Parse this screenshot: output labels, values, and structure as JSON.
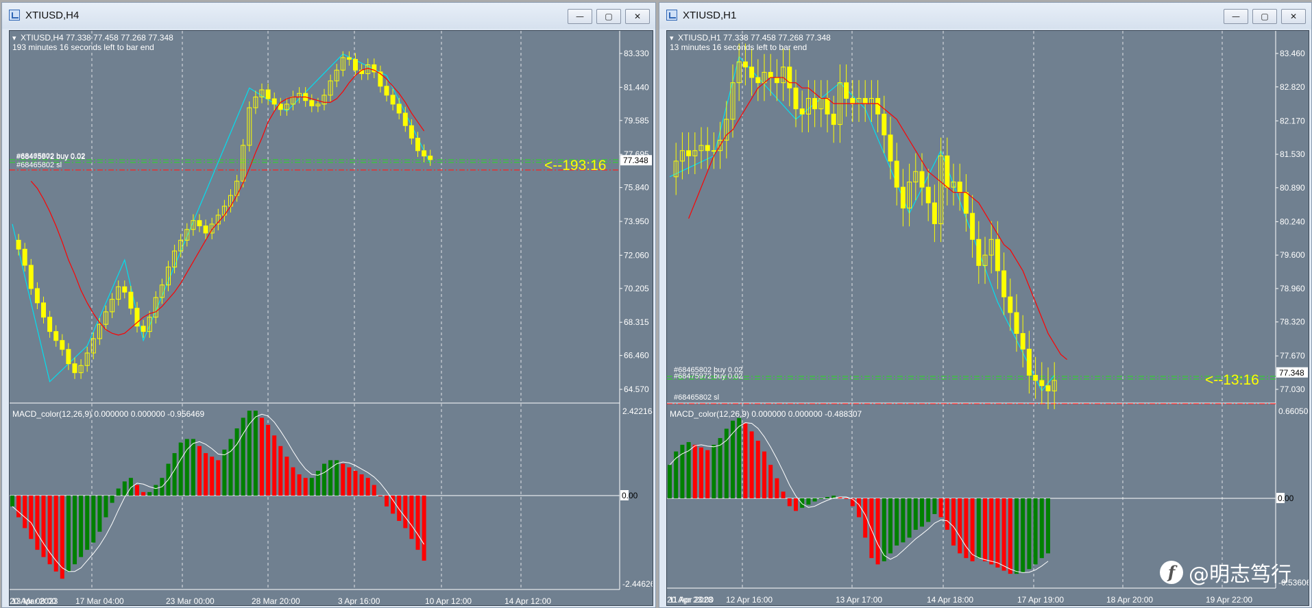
{
  "windows": [
    {
      "title": "XTIUSD,H4",
      "info_line1": "XTIUSD,H4  77.338 77.458 77.268 77.348",
      "info_line2": "193 minutes 16 seconds left to bar end",
      "price_ticks": [
        "83.330",
        "81.440",
        "79.585",
        "77.695",
        "75.840",
        "73.950",
        "72.060",
        "70.205",
        "68.315",
        "66.460",
        "64.570"
      ],
      "current_price": "77.348",
      "countdown": "<--193:16",
      "order_labels": [
        "#68465802 buy 0.02",
        "#68475972 buy 0.02",
        "#68465802 sl"
      ],
      "macd_label": "MACD_color(12,26,9) 0.000000 0.000000 -0.956469",
      "macd_ticks": [
        "2.422164",
        "0.00",
        "-2.446260"
      ],
      "time_ticks": [
        "13 Mar 2023",
        "17 Mar 04:00",
        "23 Mar 00:00",
        "28 Mar 20:00",
        "3 Apr 16:00",
        "10 Apr 12:00",
        "14 Apr 12:00",
        "20 Apr 08:00"
      ],
      "price_path": [
        72.9,
        72.4,
        71.5,
        70.2,
        69.4,
        68.6,
        67.8,
        67.3,
        66.8,
        66.0,
        65.5,
        65.9,
        66.6,
        67.4,
        68.2,
        68.9,
        69.6,
        70.3,
        70.0,
        69.1,
        68.1,
        67.8,
        68.6,
        69.7,
        70.4,
        71.4,
        72.3,
        72.9,
        73.5,
        74.0,
        73.7,
        73.3,
        73.8,
        74.3,
        74.8,
        75.4,
        76.2,
        78.2,
        80.3,
        80.9,
        81.3,
        80.8,
        80.5,
        80.2,
        80.5,
        80.9,
        81.1,
        80.7,
        80.4,
        80.5,
        81.0,
        81.8,
        82.4,
        83.1,
        83.0,
        82.4,
        82.2,
        82.7,
        82.3,
        81.5,
        81.0,
        80.5,
        80.0,
        79.3,
        78.6,
        77.9,
        77.6,
        77.4
      ],
      "ma_path": [
        76.2,
        75.8,
        75.2,
        74.5,
        73.7,
        72.8,
        71.8,
        71.0,
        70.1,
        69.4,
        68.8,
        68.3,
        67.9,
        67.7,
        67.6,
        67.7,
        68.0,
        68.3,
        68.6,
        68.8,
        68.9,
        69.2,
        69.6,
        70.0,
        70.5,
        71.1,
        71.7,
        72.3,
        72.9,
        73.5,
        73.9,
        74.3,
        74.8,
        75.4,
        76.1,
        76.9,
        77.8,
        78.6,
        79.5,
        80.1,
        80.6,
        80.8,
        80.9,
        80.9,
        80.9,
        80.8,
        80.7,
        80.6,
        80.6,
        80.8,
        81.2,
        81.7,
        82.1,
        82.4,
        82.5,
        82.4,
        82.2,
        81.9,
        81.5,
        81.1,
        80.6,
        80.0,
        79.5,
        79.0
      ],
      "zigzag": [
        [
          0,
          73.8
        ],
        [
          6,
          65.0
        ],
        [
          12,
          67.0
        ],
        [
          18,
          71.8
        ],
        [
          21,
          67.3
        ],
        [
          38,
          81.4
        ],
        [
          44,
          80.1
        ],
        [
          53,
          83.3
        ],
        [
          60,
          82.1
        ],
        [
          67,
          77.2
        ]
      ],
      "macd_values": [
        -0.3,
        -0.6,
        -0.9,
        -1.2,
        -1.5,
        -1.7,
        -1.9,
        -2.1,
        -2.3,
        -2.1,
        -1.9,
        -1.7,
        -1.5,
        -1.3,
        -1.0,
        -0.6,
        -0.2,
        0.2,
        0.4,
        0.5,
        0.3,
        0.1,
        0.1,
        0.3,
        0.5,
        0.9,
        1.2,
        1.5,
        1.6,
        1.6,
        1.4,
        1.2,
        1.1,
        1.0,
        1.3,
        1.6,
        1.9,
        2.2,
        2.4,
        2.4,
        2.2,
        2.0,
        1.7,
        1.4,
        1.1,
        0.8,
        0.6,
        0.5,
        0.5,
        0.7,
        0.9,
        1.0,
        1.0,
        0.9,
        0.8,
        0.7,
        0.6,
        0.5,
        0.3,
        0.0,
        -0.3,
        -0.5,
        -0.7,
        -0.9,
        -1.2,
        -1.5,
        -1.8
      ],
      "colors": {
        "bull": "#008000",
        "bear": "#ff0000",
        "candle": "#ffff00",
        "ma": "#ff0000",
        "zigzag": "#00e0f0",
        "countdown": "#ffff00"
      }
    },
    {
      "title": "XTIUSD,H1",
      "info_line1": "XTIUSD,H1  77.338 77.458 77.268 77.348",
      "info_line2": "13 minutes 16 seconds left to bar end",
      "price_ticks": [
        "83.460",
        "82.820",
        "82.170",
        "81.530",
        "80.890",
        "80.240",
        "79.600",
        "78.960",
        "78.320",
        "77.670",
        "77.030"
      ],
      "current_price": "77.348",
      "countdown": "<--13:16",
      "order_labels": [
        "#68465802 buy 0.02",
        "#68475972 buy 0.02",
        "#68465802 sl"
      ],
      "macd_label": "MACD_color(12,26,9) 0.000000 0.000000 -0.488307",
      "macd_ticks": [
        "0.660506",
        "0.00",
        "-0.536067"
      ],
      "time_ticks": [
        "11 Apr 2023",
        "12 Apr 16:00",
        "13 Apr 17:00",
        "14 Apr 18:00",
        "17 Apr 19:00",
        "18 Apr 20:00",
        "19 Apr 22:00",
        "20 Apr 23:00"
      ],
      "price_path": [
        81.1,
        81.4,
        81.6,
        81.5,
        81.6,
        81.7,
        81.6,
        81.6,
        81.8,
        82.2,
        82.9,
        83.3,
        83.2,
        83.0,
        82.9,
        83.1,
        83.0,
        82.9,
        83.2,
        82.8,
        82.4,
        82.3,
        82.6,
        82.4,
        82.6,
        82.3,
        82.1,
        82.9,
        82.6,
        82.5,
        82.6,
        82.5,
        82.6,
        82.3,
        81.9,
        81.4,
        80.9,
        80.5,
        81.0,
        81.2,
        80.9,
        80.6,
        80.2,
        81.5,
        80.9,
        81.0,
        80.8,
        80.4,
        79.9,
        79.4,
        79.6,
        79.9,
        79.3,
        78.8,
        78.5,
        78.1,
        77.8,
        77.3,
        77.2,
        77.1,
        77.0,
        77.2
      ],
      "ma_path": [
        80.3,
        80.6,
        80.9,
        81.2,
        81.5,
        81.7,
        81.9,
        82.0,
        82.2,
        82.4,
        82.6,
        82.8,
        82.9,
        83.0,
        83.0,
        83.0,
        82.9,
        82.9,
        82.8,
        82.8,
        82.7,
        82.6,
        82.6,
        82.5,
        82.5,
        82.5,
        82.5,
        82.5,
        82.5,
        82.5,
        82.5,
        82.4,
        82.3,
        82.2,
        82.0,
        81.8,
        81.6,
        81.4,
        81.2,
        81.1,
        81.0,
        80.9,
        80.8,
        80.8,
        80.8,
        80.7,
        80.6,
        80.4,
        80.2,
        80.0,
        79.8,
        79.7,
        79.5,
        79.3,
        79.0,
        78.7,
        78.4,
        78.1,
        77.9,
        77.7,
        77.6
      ],
      "zigzag": [
        [
          0,
          81.1
        ],
        [
          7,
          81.5
        ],
        [
          11,
          83.4
        ],
        [
          20,
          82.2
        ],
        [
          27,
          82.9
        ],
        [
          31,
          82.4
        ],
        [
          38,
          80.4
        ],
        [
          43,
          81.6
        ],
        [
          52,
          78.7
        ],
        [
          59,
          77.0
        ],
        [
          61,
          77.3
        ]
      ],
      "macd_values": [
        0.25,
        0.35,
        0.4,
        0.42,
        0.4,
        0.38,
        0.36,
        0.4,
        0.45,
        0.52,
        0.58,
        0.6,
        0.56,
        0.5,
        0.43,
        0.35,
        0.25,
        0.15,
        0.05,
        -0.05,
        -0.08,
        -0.06,
        -0.04,
        -0.02,
        0.0,
        0.01,
        0.02,
        0.01,
        0.0,
        -0.05,
        -0.12,
        -0.25,
        -0.38,
        -0.42,
        -0.4,
        -0.35,
        -0.3,
        -0.28,
        -0.25,
        -0.2,
        -0.18,
        -0.15,
        -0.1,
        -0.12,
        -0.2,
        -0.3,
        -0.35,
        -0.38,
        -0.4,
        -0.38,
        -0.4,
        -0.42,
        -0.44,
        -0.46,
        -0.48,
        -0.48,
        -0.47,
        -0.45,
        -0.42,
        -0.38,
        -0.35
      ],
      "colors": {
        "bull": "#008000",
        "bear": "#ff0000",
        "candle": "#ffff00",
        "ma": "#ff0000",
        "zigzag": "#00e0f0",
        "countdown": "#ffff00"
      }
    }
  ],
  "watermark": {
    "text": "@明志笃行",
    "logo": "f"
  }
}
